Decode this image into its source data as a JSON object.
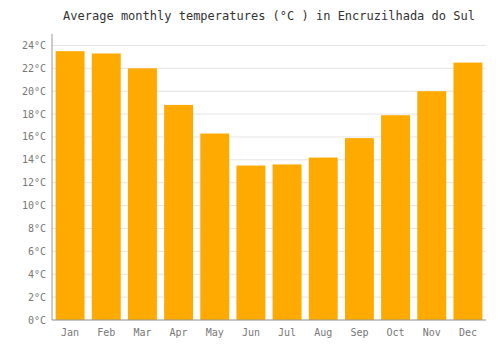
{
  "chart_data": {
    "type": "bar",
    "title": "Average monthly temperatures (°C ) in Encruzilhada do Sul",
    "categories": [
      "Jan",
      "Feb",
      "Mar",
      "Apr",
      "May",
      "Jun",
      "Jul",
      "Aug",
      "Sep",
      "Oct",
      "Nov",
      "Dec"
    ],
    "values": [
      23.5,
      23.3,
      22.0,
      18.8,
      16.3,
      13.5,
      13.6,
      14.2,
      15.9,
      17.9,
      20.0,
      22.5
    ],
    "color": "#FFAA00",
    "ylim": [
      0,
      25
    ],
    "yticks": [
      {
        "value": 0,
        "label": "0°C"
      },
      {
        "value": 2,
        "label": "2°C"
      },
      {
        "value": 4,
        "label": "4°C"
      },
      {
        "value": 6,
        "label": "6°C"
      },
      {
        "value": 8,
        "label": "8°C"
      },
      {
        "value": 10,
        "label": "10°C"
      },
      {
        "value": 12,
        "label": "12°C"
      },
      {
        "value": 14,
        "label": "14°C"
      },
      {
        "value": 16,
        "label": "16°C"
      },
      {
        "value": 18,
        "label": "18°C"
      },
      {
        "value": 20,
        "label": "20°C"
      },
      {
        "value": 22,
        "label": "22°C"
      },
      {
        "value": 24,
        "label": "24°C"
      }
    ],
    "grid": true
  }
}
